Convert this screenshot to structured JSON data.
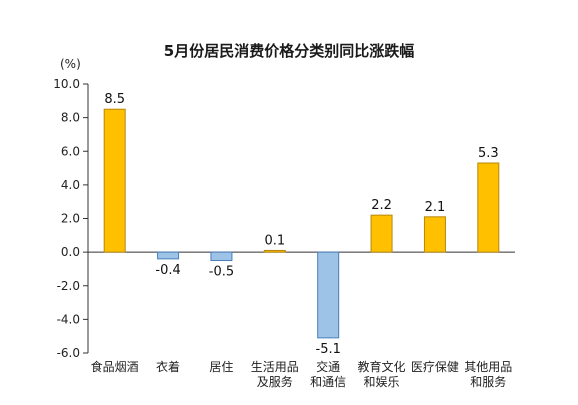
{
  "chart_data": {
    "type": "bar",
    "title": "5月份居民消费价格分类别同比涨跌幅",
    "ylabel": "(%)",
    "ylim": [
      -6.0,
      10.0
    ],
    "yticks": [
      "10.0",
      "8.0",
      "6.0",
      "4.0",
      "2.0",
      "0.0",
      "-2.0",
      "-4.0",
      "-6.0"
    ],
    "categories": [
      [
        "食品烟酒"
      ],
      [
        "衣着"
      ],
      [
        "居住"
      ],
      [
        "生活用品",
        "及服务"
      ],
      [
        "交通",
        "和通信"
      ],
      [
        "教育文化",
        "和娱乐"
      ],
      [
        "医疗保健"
      ],
      [
        "其他用品",
        "和服务"
      ]
    ],
    "values": [
      8.5,
      -0.4,
      -0.5,
      0.1,
      -5.1,
      2.2,
      2.1,
      5.3
    ],
    "data_labels": [
      "8.5",
      "-0.4",
      "-0.5",
      "0.1",
      "-5.1",
      "2.2",
      "2.1",
      "5.3"
    ],
    "grid": false,
    "legend": "none",
    "colors": {
      "positive_fill": "#FFC000",
      "positive_stroke": "#B8860B",
      "negative_fill": "#9DC3E6",
      "negative_stroke": "#4A7EBB",
      "axis": "#333333"
    }
  }
}
